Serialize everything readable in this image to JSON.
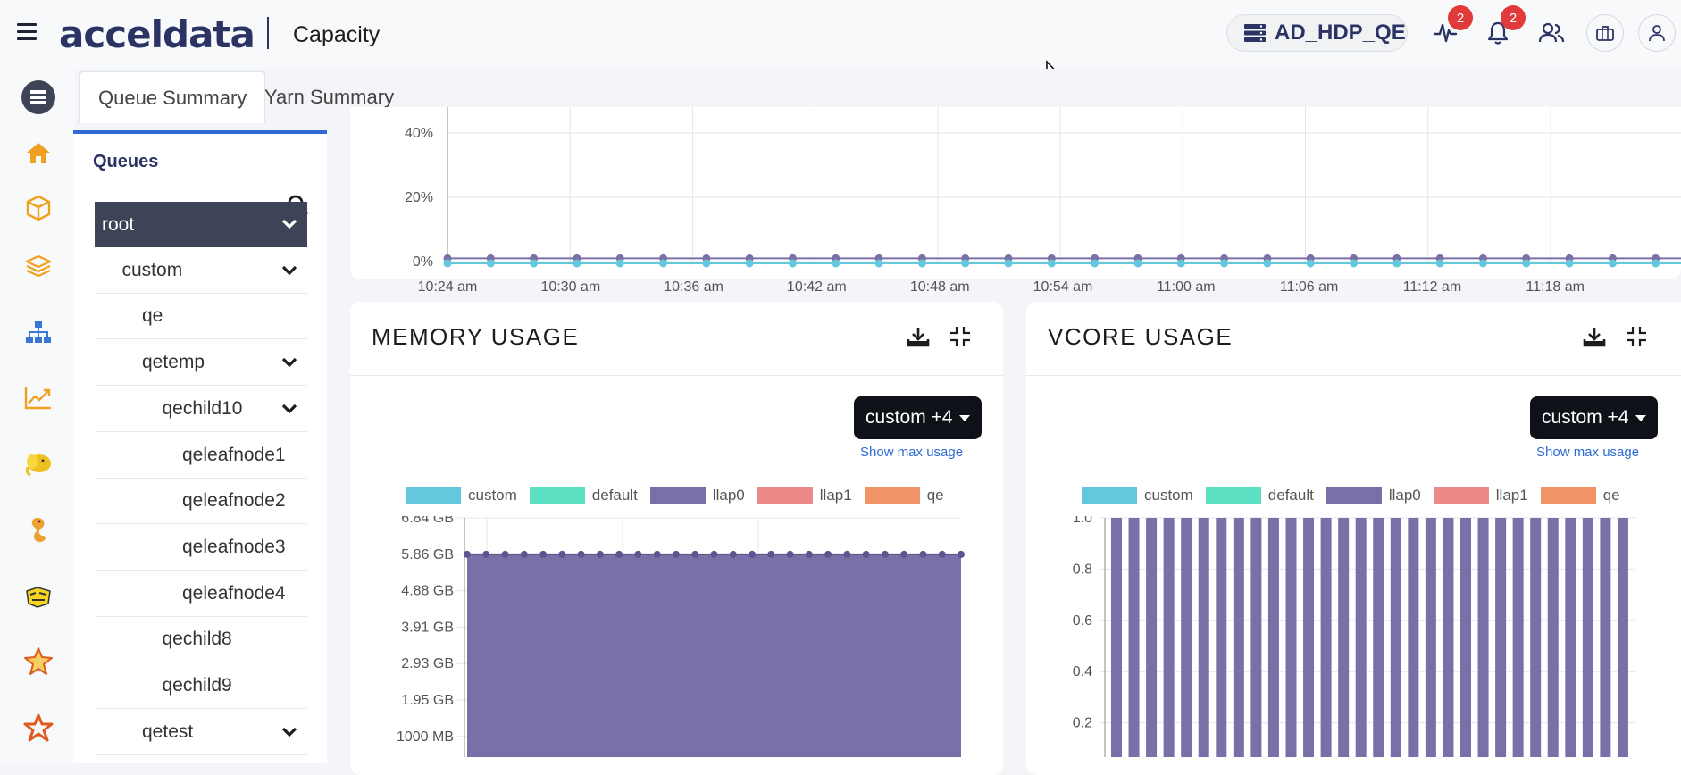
{
  "header": {
    "logo": "acceldata",
    "page_title": "Capacity",
    "cluster_name": "AD_HDP_QE",
    "activity_badge": "2",
    "alerts_badge": "2"
  },
  "tabs": [
    {
      "label": "Queue Summary"
    },
    {
      "label": "Yarn Summary"
    }
  ],
  "queues": {
    "title": "Queues",
    "items": [
      {
        "label": "root",
        "level": 0,
        "expandable": true,
        "active": true
      },
      {
        "label": "custom",
        "level": 1,
        "expandable": true
      },
      {
        "label": "qe",
        "level": 2,
        "expandable": false
      },
      {
        "label": "qetemp",
        "level": 2,
        "expandable": true
      },
      {
        "label": "qechild10",
        "level": 3,
        "expandable": true
      },
      {
        "label": "qeleafnode1",
        "level": 4,
        "expandable": false
      },
      {
        "label": "qeleafnode2",
        "level": 4,
        "expandable": false
      },
      {
        "label": "qeleafnode3",
        "level": 4,
        "expandable": false
      },
      {
        "label": "qeleafnode4",
        "level": 4,
        "expandable": false
      },
      {
        "label": "qechild8",
        "level": 3,
        "expandable": false
      },
      {
        "label": "qechild9",
        "level": 3,
        "expandable": false
      },
      {
        "label": "qetest",
        "level": 2,
        "expandable": true
      }
    ]
  },
  "colors": {
    "custom": "#63c8dc",
    "default": "#5ee0c2",
    "llap0": "#7a70a8",
    "llap1": "#ec8a8a",
    "qe": "#f09468"
  },
  "chart_data": [
    {
      "type": "line",
      "title": "",
      "xlabel": "",
      "ylabel": "",
      "y_ticks": [
        "0%",
        "20%",
        "40%"
      ],
      "x_ticks": [
        "10:24 am",
        "10:30 am",
        "10:36 am",
        "10:42 am",
        "10:48 am",
        "10:54 am",
        "11:00 am",
        "11:06 am",
        "11:12 am",
        "11:18 am"
      ],
      "ylim": [
        0,
        50
      ],
      "series": [
        {
          "name": "llap0",
          "values": [
            1,
            1,
            1,
            1,
            1,
            1,
            1,
            1,
            1,
            1,
            1,
            1,
            1,
            1,
            1,
            1,
            1,
            1,
            1,
            1,
            1,
            1,
            1,
            1,
            1,
            1,
            1,
            1,
            1,
            1
          ]
        },
        {
          "name": "custom",
          "values": [
            0,
            0,
            0,
            0,
            0,
            0,
            0,
            0,
            0,
            0,
            0,
            0,
            0,
            0,
            0,
            0,
            0,
            0,
            0,
            0,
            0,
            0,
            0,
            0,
            0,
            0,
            0,
            0,
            0,
            0
          ]
        }
      ]
    },
    {
      "type": "area",
      "title": "MEMORY USAGE",
      "selector": "custom +4",
      "max_link": "Show max usage",
      "legend": [
        "custom",
        "default",
        "llap0",
        "llap1",
        "qe"
      ],
      "y_ticks": [
        "6.84 GB",
        "5.86 GB",
        "4.88 GB",
        "3.91 GB",
        "2.93 GB",
        "1.95 GB",
        "1000 MB"
      ],
      "ylim_gb": [
        0,
        6.84
      ],
      "series": [
        {
          "name": "llap0",
          "value_gb": 5.86,
          "points": 27
        }
      ]
    },
    {
      "type": "bar",
      "title": "VCORE USAGE",
      "selector": "custom +4",
      "max_link": "Show max usage",
      "legend": [
        "custom",
        "default",
        "llap0",
        "llap1",
        "qe"
      ],
      "y_ticks": [
        "1.0",
        "0.8",
        "0.6",
        "0.4",
        "0.2"
      ],
      "ylim": [
        0,
        1.0
      ],
      "series": [
        {
          "name": "llap0",
          "values": [
            1,
            1,
            1,
            1,
            1,
            1,
            1,
            1,
            1,
            1,
            1,
            1,
            1,
            1,
            1,
            1,
            1,
            1,
            1,
            1,
            1,
            1,
            1,
            1,
            1,
            1,
            1,
            1,
            1,
            1
          ]
        }
      ]
    }
  ]
}
